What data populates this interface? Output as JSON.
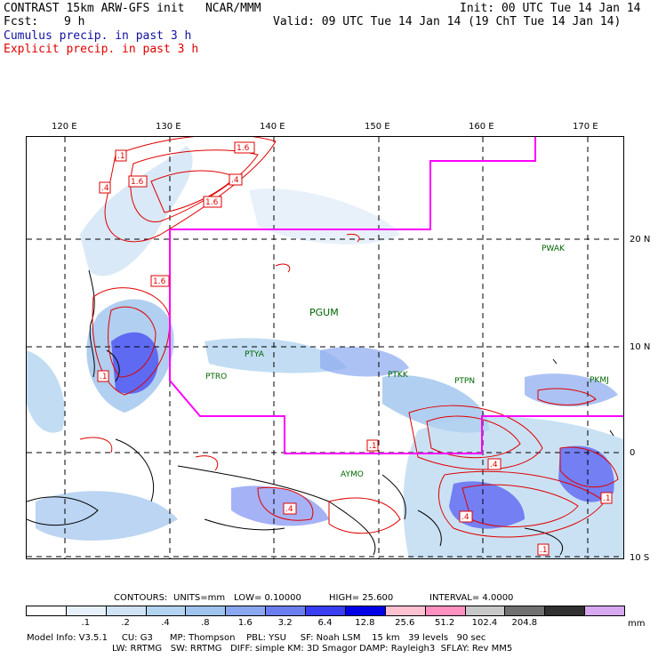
{
  "header": {
    "title": "CONTRAST 15km ARW-GFS init   NCAR/MMM",
    "init": "Init: 00 UTC Tue 14 Jan 14",
    "fcst_label": "Fcst:",
    "fcst_value": "9 h",
    "valid": "Valid: 09 UTC Tue 14 Jan 14 (19 ChT Tue 14 Jan 14)",
    "cumulus": "Cumulus precip. in past 3 h",
    "explicit": "Explicit precip. in past 3 h"
  },
  "map": {
    "lon_labels": [
      "120 E",
      "130 E",
      "140 E",
      "150 E",
      "160 E",
      "170 E"
    ],
    "lat_labels": [
      "20 N",
      "10 N",
      "0",
      "10 S"
    ],
    "stations": [
      "PWAK",
      "PGUM",
      "PTYA",
      "PTRO",
      "PTKK",
      "PTPN",
      "PKMJ",
      "AYMO"
    ],
    "contour_labels": [
      ".1",
      "1.6",
      ".4",
      ".4",
      "1.6",
      "1.6",
      "1.6",
      ".1",
      ".1",
      ".4",
      ".4",
      ".4",
      ".1",
      ".1"
    ]
  },
  "contours_info": {
    "label": "CONTOURS:",
    "units": "UNITS=mm",
    "low": "LOW= 0.10000",
    "high": "HIGH= 25.600",
    "interval": "INTERVAL= 4.0000"
  },
  "legend": {
    "unit": "mm",
    "ticks": [
      ".1",
      ".2",
      ".4",
      ".8",
      "1.6",
      "3.2",
      "6.4",
      "12.8",
      "25.6",
      "51.2",
      "102.4",
      "204.8"
    ],
    "colors": [
      "#ffffff",
      "#e6f0fa",
      "#cfe3f5",
      "#b3d4f0",
      "#9ec3ec",
      "#8aa8f0",
      "#6b7ef0",
      "#3a3ef2",
      "#0000e6",
      "#ffc0d0",
      "#ff90c0",
      "#c8c8c8",
      "#707070",
      "#303030",
      "#d6a8f0"
    ]
  },
  "footer": {
    "line1": "Model Info: V3.5.1     CU: G3      MP: Thompson    PBL: YSU     SF: Noah LSM    15 km   39 levels   90 sec",
    "line2": "LW: RRTMG   SW: RRTMG   DIFF: simple KM: 3D Smagor DAMP: Rayleigh3  SFLAY: Rev MM5"
  }
}
